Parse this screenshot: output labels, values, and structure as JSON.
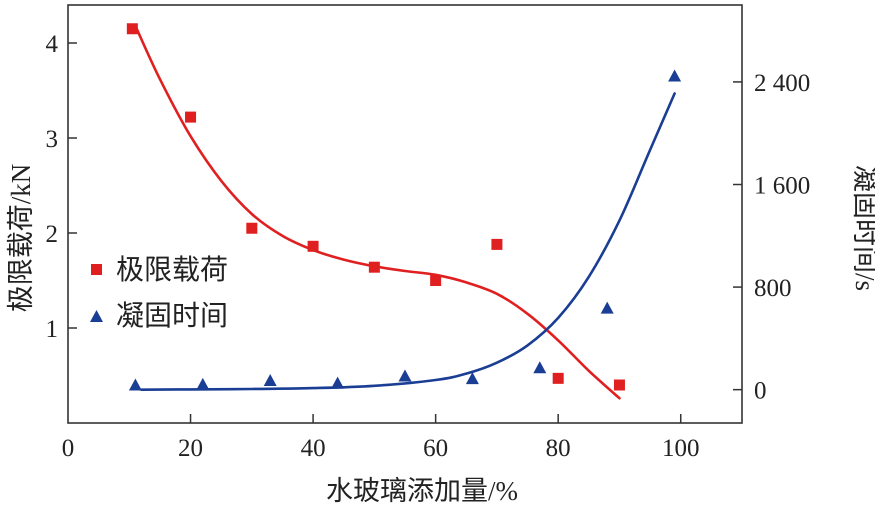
{
  "chart_data": {
    "type": "scatter",
    "xlabel": "水玻璃添加量/%",
    "ylabel_left": "极限载荷/kN",
    "ylabel_right": "凝固时间/s",
    "xlim": [
      0,
      110
    ],
    "ylim_left": [
      0,
      4.4
    ],
    "ylim_right": [
      -260,
      3000
    ],
    "x_ticks": [
      "0",
      "20",
      "40",
      "60",
      "80",
      "100"
    ],
    "y_left_ticks": [
      "1",
      "2",
      "3",
      "4"
    ],
    "y_right_ticks": [
      "0",
      "800",
      "1 600",
      "2 400"
    ],
    "legend": [
      "极限载荷",
      "凝固时间"
    ],
    "legend_position": "left-middle",
    "colors": {
      "load": "#e02020",
      "time": "#1a3e94",
      "axis": "#333333"
    },
    "series": [
      {
        "name": "极限载荷",
        "axis": "left",
        "marker": "square",
        "x": [
          10.5,
          20,
          30,
          40,
          50,
          60,
          70,
          80,
          90
        ],
        "y": [
          4.15,
          3.22,
          2.05,
          1.86,
          1.64,
          1.5,
          1.88,
          0.47,
          0.4
        ]
      },
      {
        "name": "凝固时间",
        "axis": "right",
        "marker": "triangle",
        "x": [
          11,
          22,
          33,
          44,
          55,
          66,
          77,
          88,
          99
        ],
        "y": [
          40,
          45,
          75,
          55,
          110,
          90,
          175,
          640,
          2450
        ]
      }
    ],
    "fits": [
      {
        "series": "极限载荷",
        "x": [
          11,
          15,
          20,
          25,
          30,
          35,
          40,
          45,
          50,
          55,
          60,
          65,
          70,
          75,
          80,
          85,
          90
        ],
        "y": [
          4.18,
          3.62,
          3.02,
          2.55,
          2.2,
          1.97,
          1.82,
          1.72,
          1.65,
          1.6,
          1.56,
          1.48,
          1.36,
          1.15,
          0.87,
          0.55,
          0.26
        ]
      },
      {
        "series": "凝固时间",
        "x": [
          12,
          20,
          30,
          40,
          50,
          60,
          65,
          70,
          75,
          80,
          85,
          90,
          95,
          99
        ],
        "y": [
          0,
          2,
          5,
          12,
          30,
          75,
          125,
          210,
          345,
          560,
          880,
          1320,
          1870,
          2310
        ]
      }
    ]
  }
}
